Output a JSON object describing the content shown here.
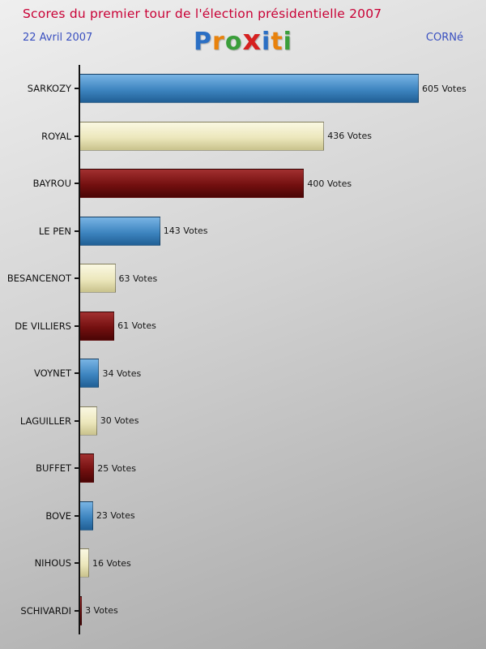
{
  "header": {
    "title": "Scores du premier tour de l'élection présidentielle 2007",
    "date": "22 Avril 2007",
    "region": "CORNé",
    "logo": {
      "name": "Proxiti",
      "letters": [
        {
          "char": "P",
          "color": "#2b6fc4"
        },
        {
          "char": "r",
          "color": "#e8820c"
        },
        {
          "char": "o",
          "color": "#3a9e3a"
        },
        {
          "char": "x",
          "color": "#d62020"
        },
        {
          "char": "i",
          "color": "#2b6fc4"
        },
        {
          "char": "t",
          "color": "#e8820c"
        },
        {
          "char": "i",
          "color": "#3a9e3a"
        }
      ]
    }
  },
  "chart_data": {
    "type": "bar",
    "orientation": "horizontal",
    "title": "Scores du premier tour de l'élection présidentielle 2007",
    "categories": [
      "SARKOZY",
      "ROYAL",
      "BAYROU",
      "LE PEN",
      "BESANCENOT",
      "DE VILLIERS",
      "VOYNET",
      "LAGUILLER",
      "BUFFET",
      "BOVE",
      "NIHOUS",
      "SCHIVARDI"
    ],
    "values": [
      605,
      436,
      400,
      143,
      63,
      61,
      34,
      30,
      25,
      23,
      16,
      3
    ],
    "value_suffix": "Votes",
    "xlim": [
      0,
      605
    ],
    "grid": false,
    "legend": false,
    "bar_color_cycle": [
      "blue",
      "cream",
      "red"
    ],
    "colors": {
      "title": "#c90035",
      "subtitle": "#3a50c0",
      "axis": "#141414",
      "blue_top": "#79b4e4",
      "blue_mid": "#3e85c0",
      "blue_bottom": "#205f95",
      "cream_top": "#faf8e2",
      "cream_mid": "#ece7bc",
      "cream_bottom": "#c9c28c",
      "red_top": "#a23030",
      "red_mid": "#741010",
      "red_bottom": "#4a0505"
    }
  }
}
